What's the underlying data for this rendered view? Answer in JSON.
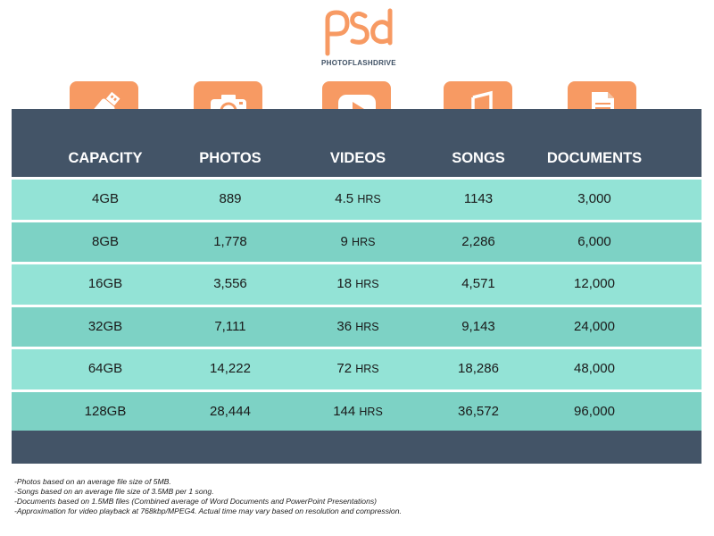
{
  "brand": {
    "logo_text": "PHOTOFLASHDRIVE",
    "accent_color": "#f79a63",
    "header_color": "#435467"
  },
  "columns": [
    {
      "key": "capacity",
      "label": "CAPACITY",
      "icon": "usb-drive-icon"
    },
    {
      "key": "photos",
      "label": "PHOTOS",
      "icon": "camera-icon"
    },
    {
      "key": "videos",
      "label": "VIDEOS",
      "icon": "play-button-icon"
    },
    {
      "key": "songs",
      "label": "SONGS",
      "icon": "music-note-icon"
    },
    {
      "key": "documents",
      "label": "DOCUMENTS",
      "icon": "document-icon"
    }
  ],
  "video_unit": "HRS",
  "rows": [
    {
      "capacity": "4GB",
      "photos": "889",
      "videos": "4.5",
      "songs": "1143",
      "documents": "3,000"
    },
    {
      "capacity": "8GB",
      "photos": "1,778",
      "videos": "9",
      "songs": "2,286",
      "documents": "6,000"
    },
    {
      "capacity": "16GB",
      "photos": "3,556",
      "videos": "18",
      "songs": "4,571",
      "documents": "12,000"
    },
    {
      "capacity": "32GB",
      "photos": "7,111",
      "videos": "36",
      "songs": "9,143",
      "documents": "24,000"
    },
    {
      "capacity": "64GB",
      "photos": "14,222",
      "videos": "72",
      "songs": "18,286",
      "documents": "48,000"
    },
    {
      "capacity": "128GB",
      "photos": "28,444",
      "videos": "144",
      "songs": "36,572",
      "documents": "96,000"
    }
  ],
  "notes": [
    "-Photos based on an average file size of 5MB.",
    "-Songs based on an average file size of 3.5MB per 1 song.",
    "-Documents based on 1.5MB files (Combined average of Word Documents and PowerPoint Presentations)",
    "-Approximation for video playback at 768kbp/MPEG4. Actual time may vary based on resolution and compression."
  ]
}
